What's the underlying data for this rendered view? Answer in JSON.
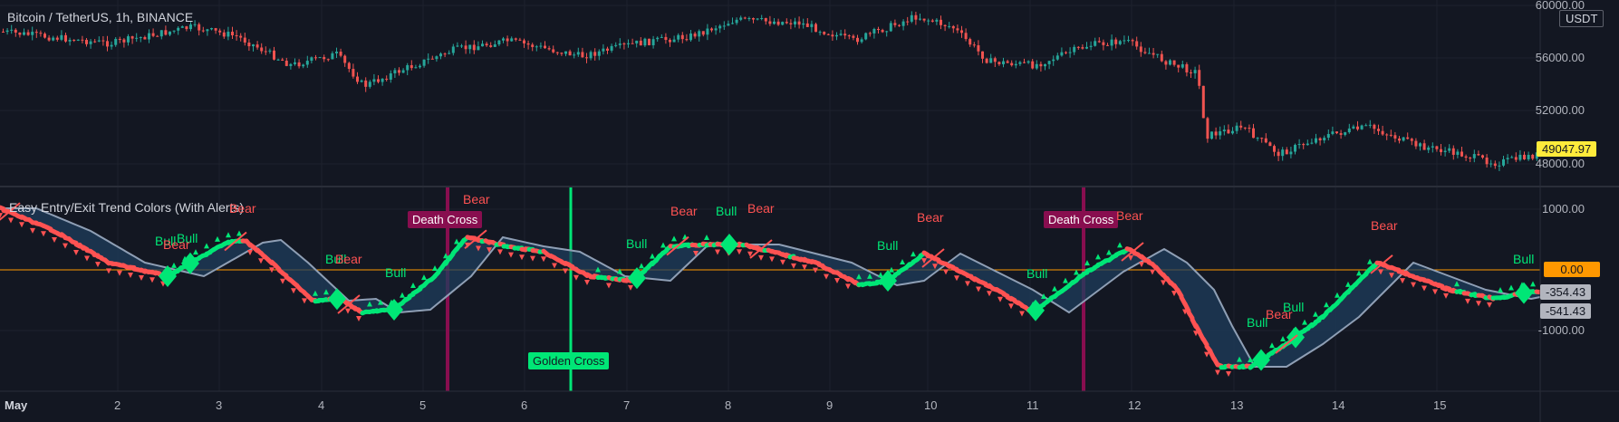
{
  "chart": {
    "symbol_title": "Bitcoin / TetherUS, 1h, BINANCE",
    "currency_label": "USDT",
    "indicator_title": "Easy Entry/Exit Trend Colors (With Alerts)"
  },
  "price_axis": {
    "ticks": [
      "60000.00",
      "56000.00",
      "52000.00",
      "48000.00"
    ],
    "current_price": "49047.97"
  },
  "indicator_axis": {
    "ticks": [
      "1000.00",
      "-1000.00"
    ],
    "zero_tag": "0.00",
    "tag_a": "-354.43",
    "tag_b": "-541.43"
  },
  "time_axis": {
    "labels": [
      "May",
      "2",
      "3",
      "4",
      "5",
      "6",
      "7",
      "8",
      "9",
      "10",
      "11",
      "12",
      "13",
      "14",
      "15"
    ]
  },
  "events": {
    "death_cross_1": "Death Cross",
    "death_cross_2": "Death Cross",
    "golden_cross": "Golden Cross"
  },
  "signals": [
    {
      "text": "Bull",
      "type": "bull"
    },
    {
      "text": "Bull",
      "type": "bull"
    },
    {
      "text": "Bear",
      "type": "bear"
    },
    {
      "text": "Bear",
      "type": "bear"
    },
    {
      "text": "Bull",
      "type": "bull"
    },
    {
      "text": "Bear",
      "type": "bear"
    },
    {
      "text": "Bull",
      "type": "bull"
    },
    {
      "text": "Bear",
      "type": "bear"
    },
    {
      "text": "Bull",
      "type": "bull"
    },
    {
      "text": "Bear",
      "type": "bear"
    },
    {
      "text": "Bull",
      "type": "bull"
    },
    {
      "text": "Bear",
      "type": "bear"
    },
    {
      "text": "Bull",
      "type": "bull"
    },
    {
      "text": "Bear",
      "type": "bear"
    },
    {
      "text": "Bull",
      "type": "bull"
    },
    {
      "text": "Bear",
      "type": "bear"
    },
    {
      "text": "Bull",
      "type": "bull"
    },
    {
      "text": "Bear",
      "type": "bear"
    },
    {
      "text": "Bull",
      "type": "bull"
    },
    {
      "text": "Bear",
      "type": "bear"
    },
    {
      "text": "Bull",
      "type": "bull"
    }
  ],
  "colors": {
    "background": "#131722",
    "bull": "#00e676",
    "bear": "#ff5252",
    "band": "#1f3d5c",
    "death_cross": "#880e4f",
    "golden_cross": "#00e676",
    "zero_line": "#ff9800",
    "price_tag": "#ffeb3b"
  }
}
